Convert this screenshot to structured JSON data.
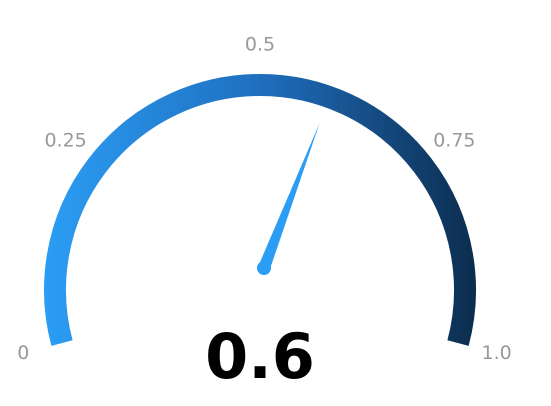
{
  "chart_data": {
    "type": "gauge",
    "value": 0.6,
    "value_label": "0.6",
    "min": 0,
    "max": 1.0,
    "ticks": [
      {
        "value": 0,
        "label": "0"
      },
      {
        "value": 0.25,
        "label": "0.25"
      },
      {
        "value": 0.5,
        "label": "0.5"
      },
      {
        "value": 0.75,
        "label": "0.75"
      },
      {
        "value": 1.0,
        "label": "1.0"
      }
    ],
    "sweep_degrees": 210,
    "colors": {
      "arc_start": "#2b9df4",
      "arc_mid": "#1f6fbf",
      "arc_end": "#0c2d4e",
      "needle": "#2b9df4",
      "tick_text": "#999999",
      "value_text": "#000000"
    }
  }
}
